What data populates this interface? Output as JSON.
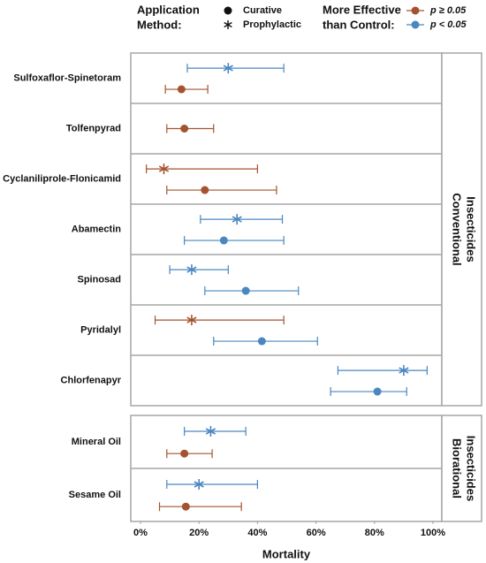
{
  "chart_data": {
    "type": "forest",
    "x_label": "Mortality",
    "xlim": [
      0,
      100
    ],
    "xticks": [
      {
        "value": 0,
        "label": "0%"
      },
      {
        "value": 20,
        "label": "20%"
      },
      {
        "value": 40,
        "label": "40%"
      },
      {
        "value": 60,
        "label": "60%"
      },
      {
        "value": 80,
        "label": "80%"
      },
      {
        "value": 100,
        "label": "100%"
      }
    ],
    "method_legend": {
      "title": [
        "Application",
        "Method:"
      ],
      "items": [
        {
          "name": "Curative",
          "marker": "circle"
        },
        {
          "name": "Prophylactic",
          "marker": "star"
        }
      ]
    },
    "significance_legend": {
      "title": [
        "More Effective",
        "than Control:"
      ],
      "items": [
        {
          "name": "p ≥ 0.05",
          "color": "#a5532f"
        },
        {
          "name": "p < 0.05",
          "color": "#4a87c1"
        }
      ]
    },
    "panels": [
      {
        "label": [
          "Conventional",
          "Insecticides"
        ],
        "rows": [
          {
            "name": "Sulfoxaflor-Spinetoram",
            "points": [
              {
                "method": "Prophylactic",
                "p": "p < 0.05",
                "value": 30,
                "lower": 16,
                "upper": 49
              },
              {
                "method": "Curative",
                "p": "p ≥ 0.05",
                "value": 14,
                "lower": 8.5,
                "upper": 23
              }
            ]
          },
          {
            "name": "Tolfenpyrad",
            "points": [
              {
                "method": "Curative",
                "p": "p ≥ 0.05",
                "value": 15,
                "lower": 9,
                "upper": 25
              }
            ]
          },
          {
            "name": "Cyclaniliprole-Flonicamid",
            "points": [
              {
                "method": "Prophylactic",
                "p": "p ≥ 0.05",
                "value": 8,
                "lower": 2,
                "upper": 40
              },
              {
                "method": "Curative",
                "p": "p ≥ 0.05",
                "value": 22,
                "lower": 9,
                "upper": 46.5
              }
            ]
          },
          {
            "name": "Abamectin",
            "points": [
              {
                "method": "Prophylactic",
                "p": "p < 0.05",
                "value": 33,
                "lower": 20.5,
                "upper": 48.5
              },
              {
                "method": "Curative",
                "p": "p < 0.05",
                "value": 28.5,
                "lower": 15,
                "upper": 49
              }
            ]
          },
          {
            "name": "Spinosad",
            "points": [
              {
                "method": "Prophylactic",
                "p": "p < 0.05",
                "value": 17.5,
                "lower": 10,
                "upper": 30
              },
              {
                "method": "Curative",
                "p": "p < 0.05",
                "value": 36,
                "lower": 22,
                "upper": 54
              }
            ]
          },
          {
            "name": "Pyridalyl",
            "points": [
              {
                "method": "Prophylactic",
                "p": "p ≥ 0.05",
                "value": 17.5,
                "lower": 5,
                "upper": 49
              },
              {
                "method": "Curative",
                "p": "p < 0.05",
                "value": 41.5,
                "lower": 25,
                "upper": 60.5
              }
            ]
          },
          {
            "name": "Chlorfenapyr",
            "points": [
              {
                "method": "Prophylactic",
                "p": "p < 0.05",
                "value": 90,
                "lower": 67.5,
                "upper": 98
              },
              {
                "method": "Curative",
                "p": "p < 0.05",
                "value": 81,
                "lower": 65,
                "upper": 91
              }
            ]
          }
        ]
      },
      {
        "label": [
          "Biorational",
          "Insecticides"
        ],
        "rows": [
          {
            "name": "Mineral Oil",
            "points": [
              {
                "method": "Prophylactic",
                "p": "p < 0.05",
                "value": 24,
                "lower": 15,
                "upper": 36
              },
              {
                "method": "Curative",
                "p": "p ≥ 0.05",
                "value": 15,
                "lower": 9,
                "upper": 24.5
              }
            ]
          },
          {
            "name": "Sesame Oil",
            "points": [
              {
                "method": "Prophylactic",
                "p": "p < 0.05",
                "value": 20,
                "lower": 9,
                "upper": 40
              },
              {
                "method": "Curative",
                "p": "p ≥ 0.05",
                "value": 15.5,
                "lower": 6.5,
                "upper": 34.5
              }
            ]
          }
        ]
      }
    ]
  }
}
